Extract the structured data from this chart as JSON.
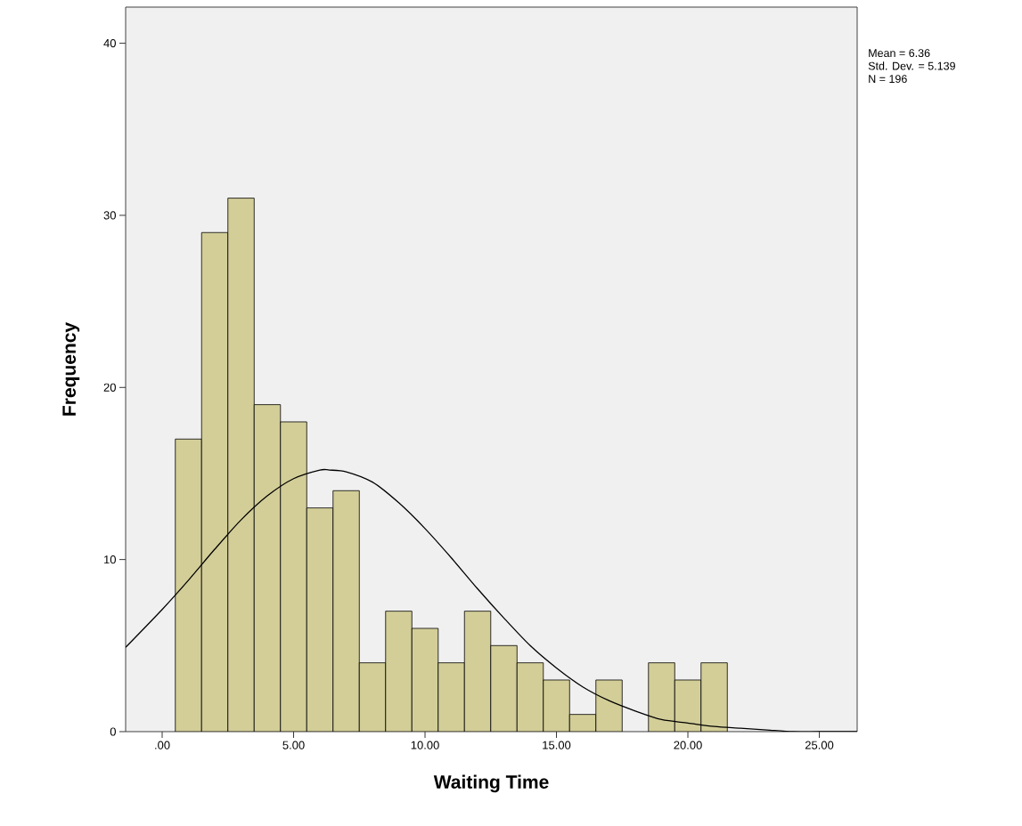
{
  "chart_data": {
    "type": "histogram",
    "xlabel": "Waiting Time",
    "ylabel": "Frequency",
    "bins": [
      0.5,
      1.5,
      2.5,
      3.5,
      4.5,
      5.5,
      6.5,
      7.5,
      8.5,
      9.5,
      10.5,
      11.5,
      12.5,
      13.5,
      14.5,
      15.5,
      16.5,
      17.5,
      18.5,
      19.5,
      20.5,
      21.5
    ],
    "series": [
      {
        "color": "#d3ce98",
        "values": [
          17,
          29,
          31,
          19,
          18,
          13,
          14,
          4,
          7,
          6,
          4,
          7,
          5,
          4,
          3,
          1,
          3,
          0,
          4,
          3,
          4
        ]
      },
      {
        "type": "line",
        "color": "#000000",
        "x": [
          -1.39,
          0,
          1,
          2,
          3,
          4,
          5,
          6,
          6.36,
          7,
          8,
          9,
          10,
          11,
          12,
          13,
          14,
          15,
          16,
          17,
          18,
          19,
          20,
          21,
          22,
          23,
          24,
          25,
          26.44
        ],
        "values": [
          4.9,
          7.1,
          8.8,
          10.6,
          12.3,
          13.7,
          14.7,
          15.2,
          15.2,
          15.1,
          14.5,
          13.3,
          11.8,
          10.1,
          8.3,
          6.6,
          5.0,
          3.7,
          2.6,
          1.8,
          1.2,
          0.7,
          0.5,
          0.3,
          0.2,
          0.1,
          0.0,
          0.0,
          0.0
        ]
      }
    ],
    "xlim": [
      -1.39,
      26.44
    ],
    "ylim": [
      0,
      42.1
    ],
    "xticks": [
      {
        "value": 0,
        "label": ".00"
      },
      {
        "value": 5,
        "label": "5.00"
      },
      {
        "value": 10,
        "label": "10.00"
      },
      {
        "value": 15,
        "label": "15.00"
      },
      {
        "value": 20,
        "label": "20.00"
      },
      {
        "value": 25,
        "label": "25.00"
      }
    ],
    "yticks": [
      0,
      10,
      20,
      30,
      40
    ],
    "grid": false,
    "annotations": [
      "Mean = 6.36",
      "Std. Dev. = 5.139",
      "N = 196"
    ]
  }
}
